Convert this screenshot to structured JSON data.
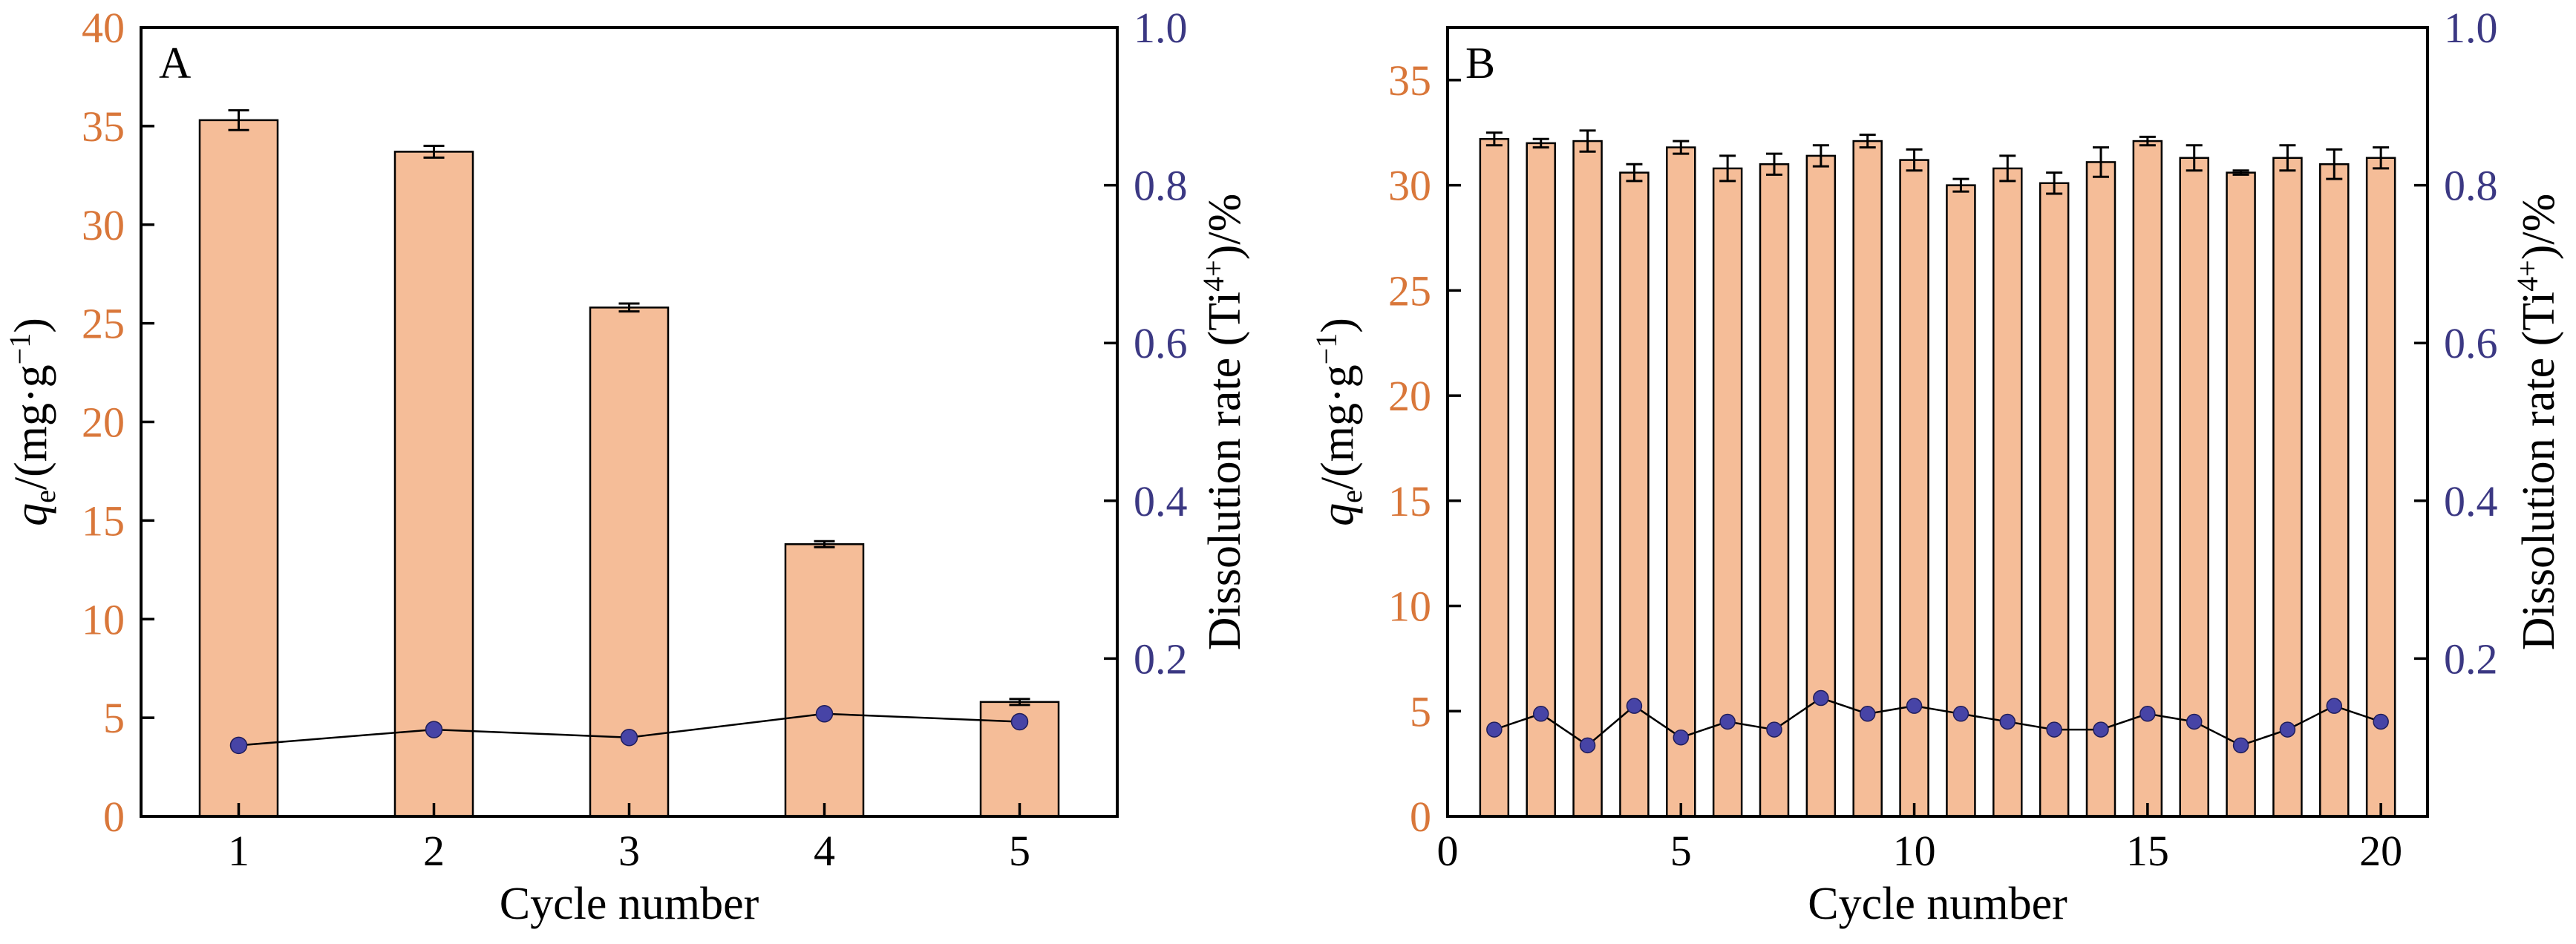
{
  "colors": {
    "bar_fill": "#F5BD98",
    "bar_stroke": "#000000",
    "left_axis": "#D9773A",
    "right_axis": "#3B3883",
    "dot_fill": "#4744A6",
    "line": "#000000"
  },
  "axis_titles": {
    "left_italic": "q",
    "left_sub": "e",
    "left_rest": "/(mg·g",
    "left_sup": "−1",
    "left_close": ")",
    "right_main": "Dissolution rate (Ti",
    "right_sup": "4+",
    "right_close": ")/%"
  },
  "chart_data": [
    {
      "panel_label": "A",
      "type": "bar",
      "xlabel": "Cycle number",
      "ylim_left": [
        0,
        40
      ],
      "ylim_right": [
        0,
        1.0
      ],
      "left_ticks": [
        0,
        5,
        10,
        15,
        20,
        25,
        30,
        35,
        40
      ],
      "right_ticks": [
        "0.2",
        "0.4",
        "0.6",
        "0.8",
        "1.0"
      ],
      "x_ticks": [
        1,
        2,
        3,
        4,
        5
      ],
      "categories": [
        1,
        2,
        3,
        4,
        5
      ],
      "qe_values": [
        35.3,
        33.7,
        25.8,
        13.8,
        5.8
      ],
      "qe_errors": [
        0.5,
        0.3,
        0.2,
        0.15,
        0.15
      ],
      "dissolution_rate": [
        0.09,
        0.11,
        0.1,
        0.13,
        0.12
      ],
      "grid": false
    },
    {
      "panel_label": "B",
      "type": "bar",
      "xlabel": "Cycle number",
      "ylim_left": [
        0,
        37.5
      ],
      "ylim_right": [
        0,
        1.0
      ],
      "left_ticks": [
        0,
        5,
        10,
        15,
        20,
        25,
        30,
        35
      ],
      "right_ticks": [
        "0.2",
        "0.4",
        "0.6",
        "0.8",
        "1.0"
      ],
      "x_ticks": [
        0,
        5,
        10,
        15,
        20
      ],
      "categories": [
        1,
        2,
        3,
        4,
        5,
        6,
        7,
        8,
        9,
        10,
        11,
        12,
        13,
        14,
        15,
        16,
        17,
        18,
        19,
        20
      ],
      "qe_values": [
        32.2,
        32.0,
        32.1,
        30.6,
        31.8,
        30.8,
        31.0,
        31.4,
        32.1,
        31.2,
        30.0,
        30.8,
        30.1,
        31.1,
        32.1,
        31.3,
        30.6,
        31.3,
        31.0,
        31.3
      ],
      "qe_errors": [
        0.3,
        0.2,
        0.5,
        0.4,
        0.3,
        0.6,
        0.5,
        0.5,
        0.3,
        0.5,
        0.3,
        0.6,
        0.5,
        0.7,
        0.2,
        0.6,
        0.1,
        0.6,
        0.7,
        0.5
      ],
      "dissolution_rate": [
        0.11,
        0.13,
        0.09,
        0.14,
        0.1,
        0.12,
        0.11,
        0.15,
        0.13,
        0.14,
        0.13,
        0.12,
        0.11,
        0.11,
        0.13,
        0.12,
        0.09,
        0.11,
        0.14,
        0.12
      ],
      "grid": false
    }
  ]
}
